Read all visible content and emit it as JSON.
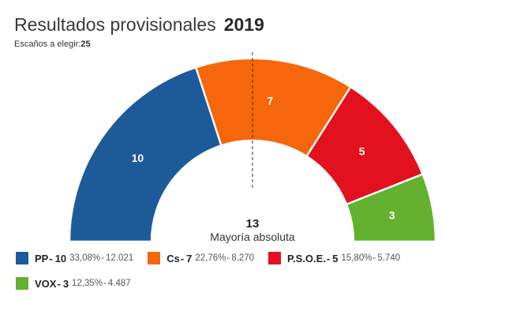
{
  "header": {
    "title": "Resultados provisionales",
    "year": "2019",
    "seats_label": "Escaños a elegir:",
    "seats_total": "25"
  },
  "chart_data": {
    "type": "pie",
    "variant": "parliament-half-donut",
    "title": "Resultados provisionales 2019",
    "total_seats": 25,
    "majority": {
      "value": "13",
      "label": "Mayoría absoluta"
    },
    "series": [
      {
        "name": "PP",
        "seats": 10,
        "percent": "33,08%",
        "votes": "12.021",
        "color": "#1d5a9a"
      },
      {
        "name": "Cs",
        "seats": 7,
        "percent": "22,76%",
        "votes": "8.270",
        "color": "#f6660b"
      },
      {
        "name": "P.S.O.E.",
        "seats": 5,
        "percent": "15,80%",
        "votes": "5.740",
        "color": "#e3111d"
      },
      {
        "name": "VOX",
        "seats": 3,
        "percent": "12,35%",
        "votes": "4.487",
        "color": "#63b12e"
      }
    ]
  }
}
